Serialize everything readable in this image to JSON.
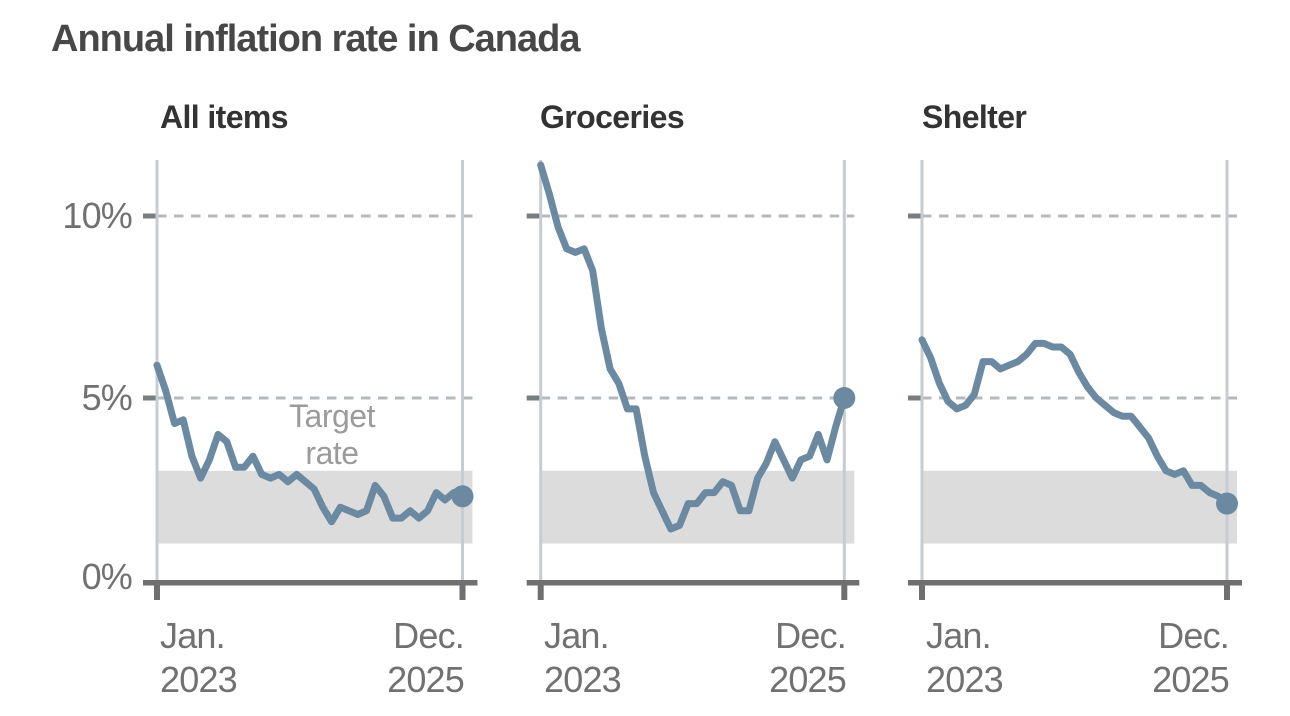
{
  "title": "Annual inflation rate in Canada",
  "annotation": {
    "line1": "Target",
    "line2": "rate"
  },
  "y_axis": {
    "labels": [
      "0%",
      "5%",
      "10%"
    ]
  },
  "x_axis": {
    "start_line1": "Jan.",
    "start_line2": "2023",
    "end_line1": "Dec.",
    "end_line2": "2025"
  },
  "colors": {
    "line": "#6C89A2",
    "end_dot": "#6C89A2",
    "target_band": "#DCDCDC",
    "dashed_grid": "#B4B9BD",
    "vertical_grid": "#C7CCD2",
    "axis": "#6F6F6F",
    "y_tick": "#787D80",
    "title": "#474747",
    "panel_title": "#333333",
    "axis_label": "#717171",
    "annotation": "#9B9B9B"
  },
  "chart_data": {
    "type": "line",
    "title": "Annual inflation rate in Canada",
    "layout": "three small-multiple panels, shared y-axis labels on first panel only",
    "ylim": [
      0,
      11.6
    ],
    "yticks": [
      0,
      5,
      10
    ],
    "ytick_labels": [
      "0%",
      "5%",
      "10%"
    ],
    "grid": "dashed horizontal lines at 5% and 10%; solid light vertical lines at first and last month",
    "target_band": {
      "from": 1,
      "to": 3,
      "label": "Target rate"
    },
    "end_dot": true,
    "x": [
      "2023-01",
      "2023-02",
      "2023-03",
      "2023-04",
      "2023-05",
      "2023-06",
      "2023-07",
      "2023-08",
      "2023-09",
      "2023-10",
      "2023-11",
      "2023-12",
      "2024-01",
      "2024-02",
      "2024-03",
      "2024-04",
      "2024-05",
      "2024-06",
      "2024-07",
      "2024-08",
      "2024-09",
      "2024-10",
      "2024-11",
      "2024-12",
      "2025-01",
      "2025-02",
      "2025-03",
      "2025-04",
      "2025-05",
      "2025-06",
      "2025-07",
      "2025-08",
      "2025-09",
      "2025-10",
      "2025-11",
      "2025-12"
    ],
    "x_tick_labels": [
      "Jan. 2023",
      "Dec. 2025"
    ],
    "series": [
      {
        "name": "All items",
        "values": [
          5.9,
          5.2,
          4.3,
          4.4,
          3.4,
          2.8,
          3.3,
          4.0,
          3.8,
          3.1,
          3.1,
          3.4,
          2.9,
          2.8,
          2.9,
          2.7,
          2.9,
          2.7,
          2.5,
          2.0,
          1.6,
          2.0,
          1.9,
          1.8,
          1.9,
          2.6,
          2.3,
          1.7,
          1.7,
          1.9,
          1.7,
          1.9,
          2.4,
          2.2,
          2.4,
          2.3
        ]
      },
      {
        "name": "Groceries",
        "values": [
          11.4,
          10.6,
          9.7,
          9.1,
          9.0,
          9.1,
          8.5,
          6.9,
          5.8,
          5.4,
          4.7,
          4.7,
          3.4,
          2.4,
          1.9,
          1.4,
          1.5,
          2.1,
          2.1,
          2.4,
          2.4,
          2.7,
          2.6,
          1.9,
          1.9,
          2.8,
          3.2,
          3.8,
          3.3,
          2.8,
          3.3,
          3.4,
          4.0,
          3.3,
          4.2,
          5.0
        ]
      },
      {
        "name": "Shelter",
        "values": [
          6.6,
          6.1,
          5.4,
          4.9,
          4.7,
          4.8,
          5.1,
          6.0,
          6.0,
          5.8,
          5.9,
          6.0,
          6.2,
          6.5,
          6.5,
          6.4,
          6.4,
          6.2,
          5.7,
          5.3,
          5.0,
          4.8,
          4.6,
          4.5,
          4.5,
          4.2,
          3.9,
          3.4,
          3.0,
          2.9,
          3.0,
          2.6,
          2.6,
          2.4,
          2.3,
          2.1
        ]
      }
    ]
  }
}
